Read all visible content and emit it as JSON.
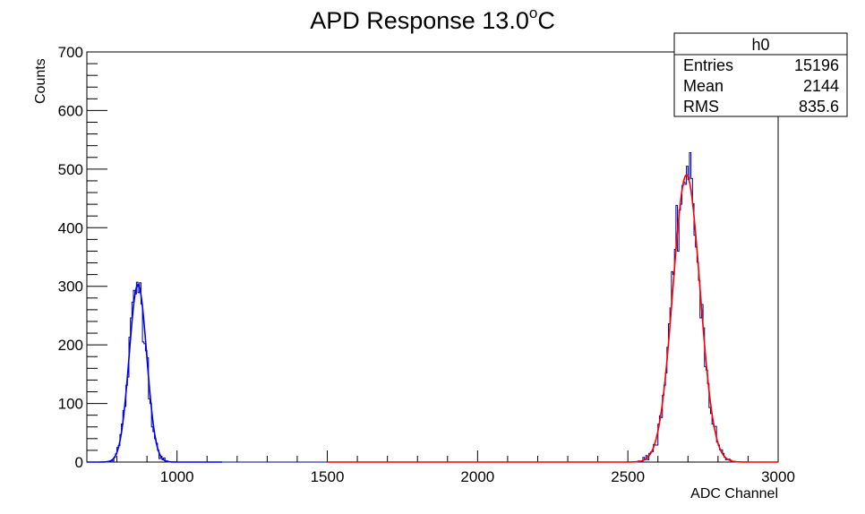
{
  "chart_data": {
    "type": "histogram",
    "title": {
      "main": "APD Response 13.0",
      "superscript": "o",
      "unit": "C"
    },
    "xlabel": "ADC Channel",
    "ylabel": "Counts",
    "xlim": [
      700,
      3000
    ],
    "ylim": [
      0,
      700
    ],
    "x_ticks": [
      1000,
      1500,
      2000,
      2500,
      3000
    ],
    "y_ticks": [
      0,
      100,
      200,
      300,
      400,
      500,
      600,
      700
    ],
    "grid": false,
    "bin_width": 5,
    "histogram_color": "#00008b",
    "peaks": [
      {
        "name": "",
        "mean": 870,
        "sigma": 29,
        "amplitude": 303,
        "range": [
          700,
          1150
        ],
        "fit_color": "#0000ff"
      },
      {
        "name": "",
        "mean": 2695,
        "sigma": 45,
        "amplitude": 490,
        "range": [
          1500,
          3000
        ],
        "fit_color": "#ff0000"
      }
    ],
    "stats_box": {
      "title": "h0",
      "rows": [
        {
          "label": "Entries",
          "value": "15196"
        },
        {
          "label": "Mean",
          "value": "2144"
        },
        {
          "label": "RMS",
          "value": "835.6"
        }
      ]
    }
  }
}
